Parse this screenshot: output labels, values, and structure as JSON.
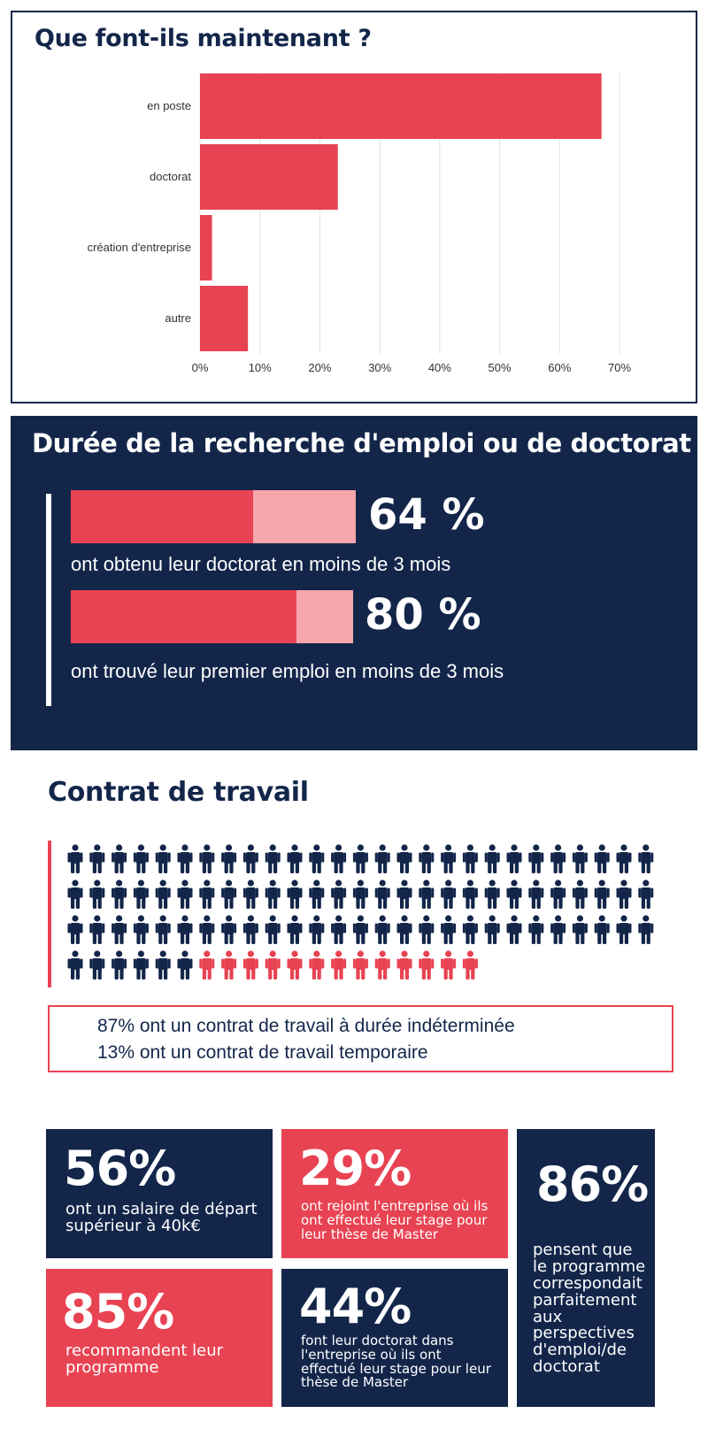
{
  "section1": {
    "title": "Que font-ils maintenant ?"
  },
  "chart_data": {
    "type": "bar",
    "orientation": "horizontal",
    "categories": [
      "en poste",
      "doctorat",
      "création d'entreprise",
      "autre"
    ],
    "values": [
      67,
      23,
      2,
      8
    ],
    "unit": "%",
    "xlim": [
      0,
      70
    ],
    "x_ticks": [
      "0%",
      "10%",
      "20%",
      "30%",
      "40%",
      "50%",
      "60%",
      "70%"
    ],
    "grid": true,
    "bar_color": "#e84352"
  },
  "section2": {
    "title": "Durée de la recherche d'emploi ou de doctorat",
    "items": [
      {
        "pct_label": "64 %",
        "value": 64,
        "desc": "ont obtenu leur doctorat en moins de 3 mois"
      },
      {
        "pct_label": "80 %",
        "value": 80,
        "desc": "ont trouvé leur premier emploi en moins de 3 mois"
      }
    ],
    "colors": {
      "fill": "#e84352",
      "remainder": "#f6a6ad"
    }
  },
  "section3": {
    "title": "Contrat de travail",
    "people": {
      "total": 100,
      "permanent": 87,
      "temporary": 13,
      "permanent_color": "#13264a",
      "temporary_color": "#e84352"
    },
    "lines": [
      "87% ont un contrat de travail à durée indéterminée",
      "13% ont un contrat de travail temporaire"
    ]
  },
  "tiles": [
    {
      "pct": "56%",
      "text": "ont un salaire de départ supérieur à 40k€",
      "color": "navy"
    },
    {
      "pct": "29%",
      "text": "ont rejoint l'entreprise où ils ont effectué leur stage pour leur thèse de Master",
      "color": "red"
    },
    {
      "pct": "86%",
      "text": "pensent que le programme correspondait parfaitement aux perspectives d'emploi/de doctorat",
      "color": "navy"
    },
    {
      "pct": "85%",
      "text": "recommandent leur programme",
      "color": "red"
    },
    {
      "pct": "44%",
      "text": "font leur doctorat dans l'entreprise où ils ont effectué leur stage pour leur thèse de Master",
      "color": "navy"
    }
  ]
}
